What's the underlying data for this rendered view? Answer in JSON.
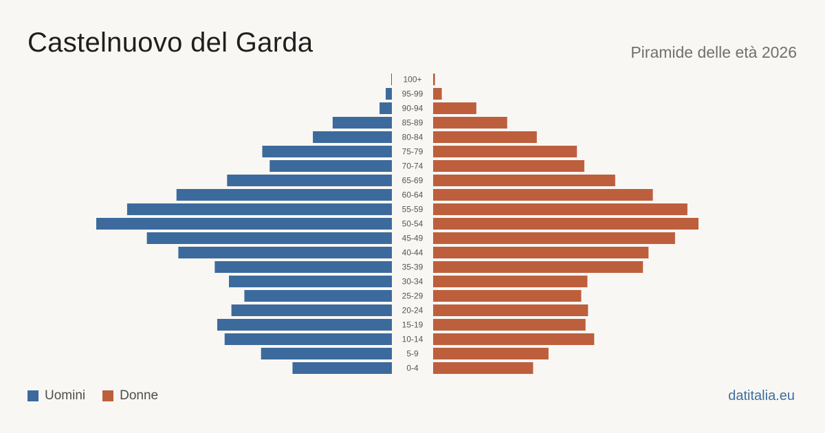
{
  "header": {
    "title": "Castelnuovo del Garda",
    "subtitle": "Piramide delle età 2026"
  },
  "legend": {
    "men_label": "Uomini",
    "women_label": "Donne"
  },
  "footer": {
    "source": "datitalia.eu"
  },
  "colors": {
    "men": "#3c6a9c",
    "women": "#bd5f3d"
  },
  "chart_data": {
    "type": "bar",
    "orientation": "horizontal",
    "subtype": "population-pyramid",
    "categories": [
      "100+",
      "95-99",
      "90-94",
      "85-89",
      "80-84",
      "75-79",
      "70-74",
      "65-69",
      "60-64",
      "55-59",
      "50-54",
      "45-49",
      "40-44",
      "35-39",
      "30-34",
      "25-29",
      "20-24",
      "15-19",
      "10-14",
      "5-9",
      "0-4"
    ],
    "series": [
      {
        "name": "Uomini",
        "color": "#3c6a9c",
        "values": [
          1,
          10,
          20,
          96,
          128,
          210,
          198,
          267,
          349,
          429,
          479,
          397,
          346,
          287,
          264,
          239,
          260,
          283,
          271,
          212,
          161
        ]
      },
      {
        "name": "Donne",
        "color": "#bd5f3d",
        "values": [
          3,
          14,
          70,
          120,
          168,
          233,
          245,
          295,
          356,
          412,
          430,
          392,
          349,
          340,
          250,
          240,
          251,
          247,
          261,
          187,
          162
        ]
      }
    ],
    "grid": false,
    "legend": "bottom-left"
  }
}
